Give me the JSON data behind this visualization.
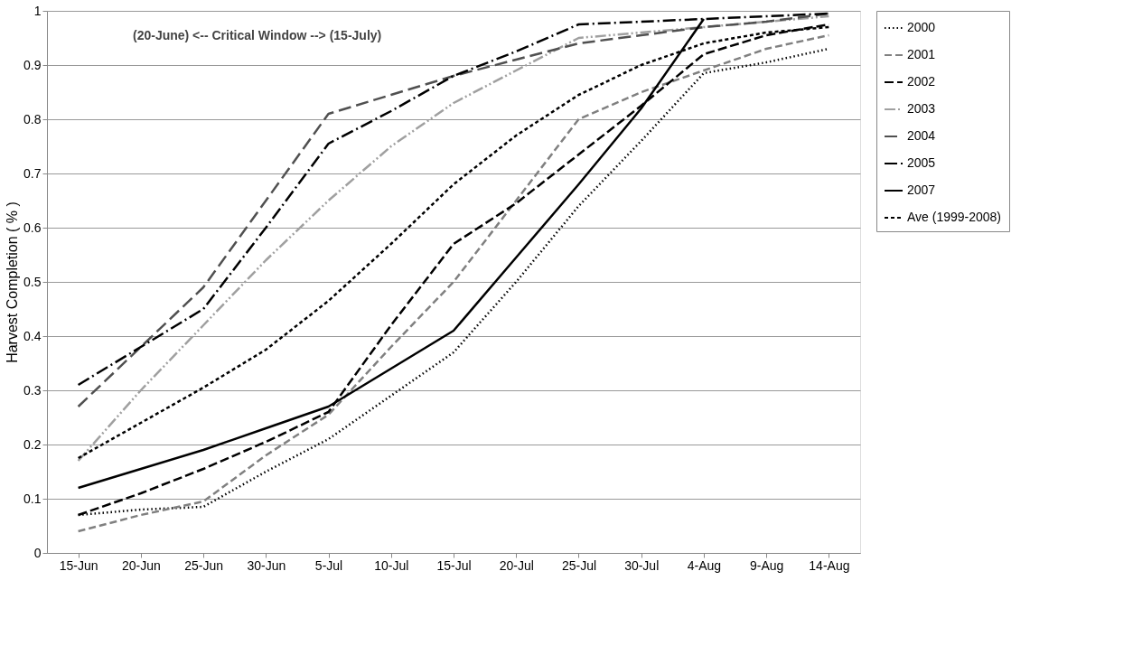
{
  "chart_data": {
    "type": "line",
    "ylabel": "Harvest Completion ( % )",
    "annotations": [
      "(20-June)  <-- Critical Window -->  (15-July)"
    ],
    "categories": [
      "15-Jun",
      "20-Jun",
      "25-Jun",
      "30-Jun",
      "5-Jul",
      "10-Jul",
      "15-Jul",
      "20-Jul",
      "25-Jul",
      "30-Jul",
      "4-Aug",
      "9-Aug",
      "14-Aug"
    ],
    "ylim": [
      0,
      1
    ],
    "yticks": [
      0,
      0.1,
      0.2,
      0.3,
      0.4,
      0.5,
      0.6,
      0.7,
      0.8,
      0.9,
      1
    ],
    "grid": "y",
    "legend": "right",
    "marker": "none",
    "series": [
      {
        "name": "2000",
        "color": "#000000",
        "line_style": "dotted",
        "values": [
          0.07,
          0.08,
          0.085,
          0.15,
          0.21,
          0.29,
          0.37,
          0.5,
          0.64,
          0.76,
          0.885,
          0.905,
          0.93
        ]
      },
      {
        "name": "2001",
        "color": "#808080",
        "line_style": "dashed",
        "values": [
          0.04,
          0.07,
          0.095,
          0.18,
          0.255,
          0.38,
          0.5,
          0.65,
          0.8,
          0.85,
          0.89,
          0.93,
          0.955
        ]
      },
      {
        "name": "2002",
        "color": "#000000",
        "line_style": "dashed",
        "values": [
          0.07,
          0.11,
          0.155,
          0.205,
          0.26,
          0.42,
          0.57,
          0.645,
          0.735,
          0.825,
          0.92,
          0.955,
          0.975
        ]
      },
      {
        "name": "2003",
        "color": "#a0a0a0",
        "line_style": "dashed",
        "values": [
          0.17,
          0.3,
          0.42,
          0.54,
          0.65,
          0.75,
          0.83,
          0.89,
          0.95,
          0.96,
          0.97,
          0.98,
          0.99
        ]
      },
      {
        "name": "2004",
        "color": "#505050",
        "line_style": "dashed",
        "values": [
          0.27,
          0.38,
          0.49,
          0.65,
          0.81,
          0.845,
          0.88,
          0.91,
          0.94,
          0.955,
          0.97,
          0.98,
          0.995
        ]
      },
      {
        "name": "2005",
        "color": "#000000",
        "line_style": "dashed",
        "values": [
          0.31,
          0.38,
          0.45,
          0.6,
          0.755,
          0.815,
          0.88,
          0.925,
          0.975,
          0.98,
          0.985,
          0.99,
          0.995
        ]
      },
      {
        "name": "2007",
        "color": "#000000",
        "line_style": "solid",
        "values": [
          0.12,
          0.155,
          0.19,
          0.23,
          0.27,
          0.34,
          0.41,
          0.545,
          0.68,
          0.82,
          0.985,
          null,
          null
        ]
      },
      {
        "name": "Ave (1999-2008)",
        "color": "#000000",
        "line_style": "dashed",
        "values": [
          0.175,
          0.24,
          0.305,
          0.375,
          0.465,
          0.57,
          0.68,
          0.77,
          0.845,
          0.9,
          0.94,
          0.96,
          0.97
        ]
      }
    ]
  }
}
